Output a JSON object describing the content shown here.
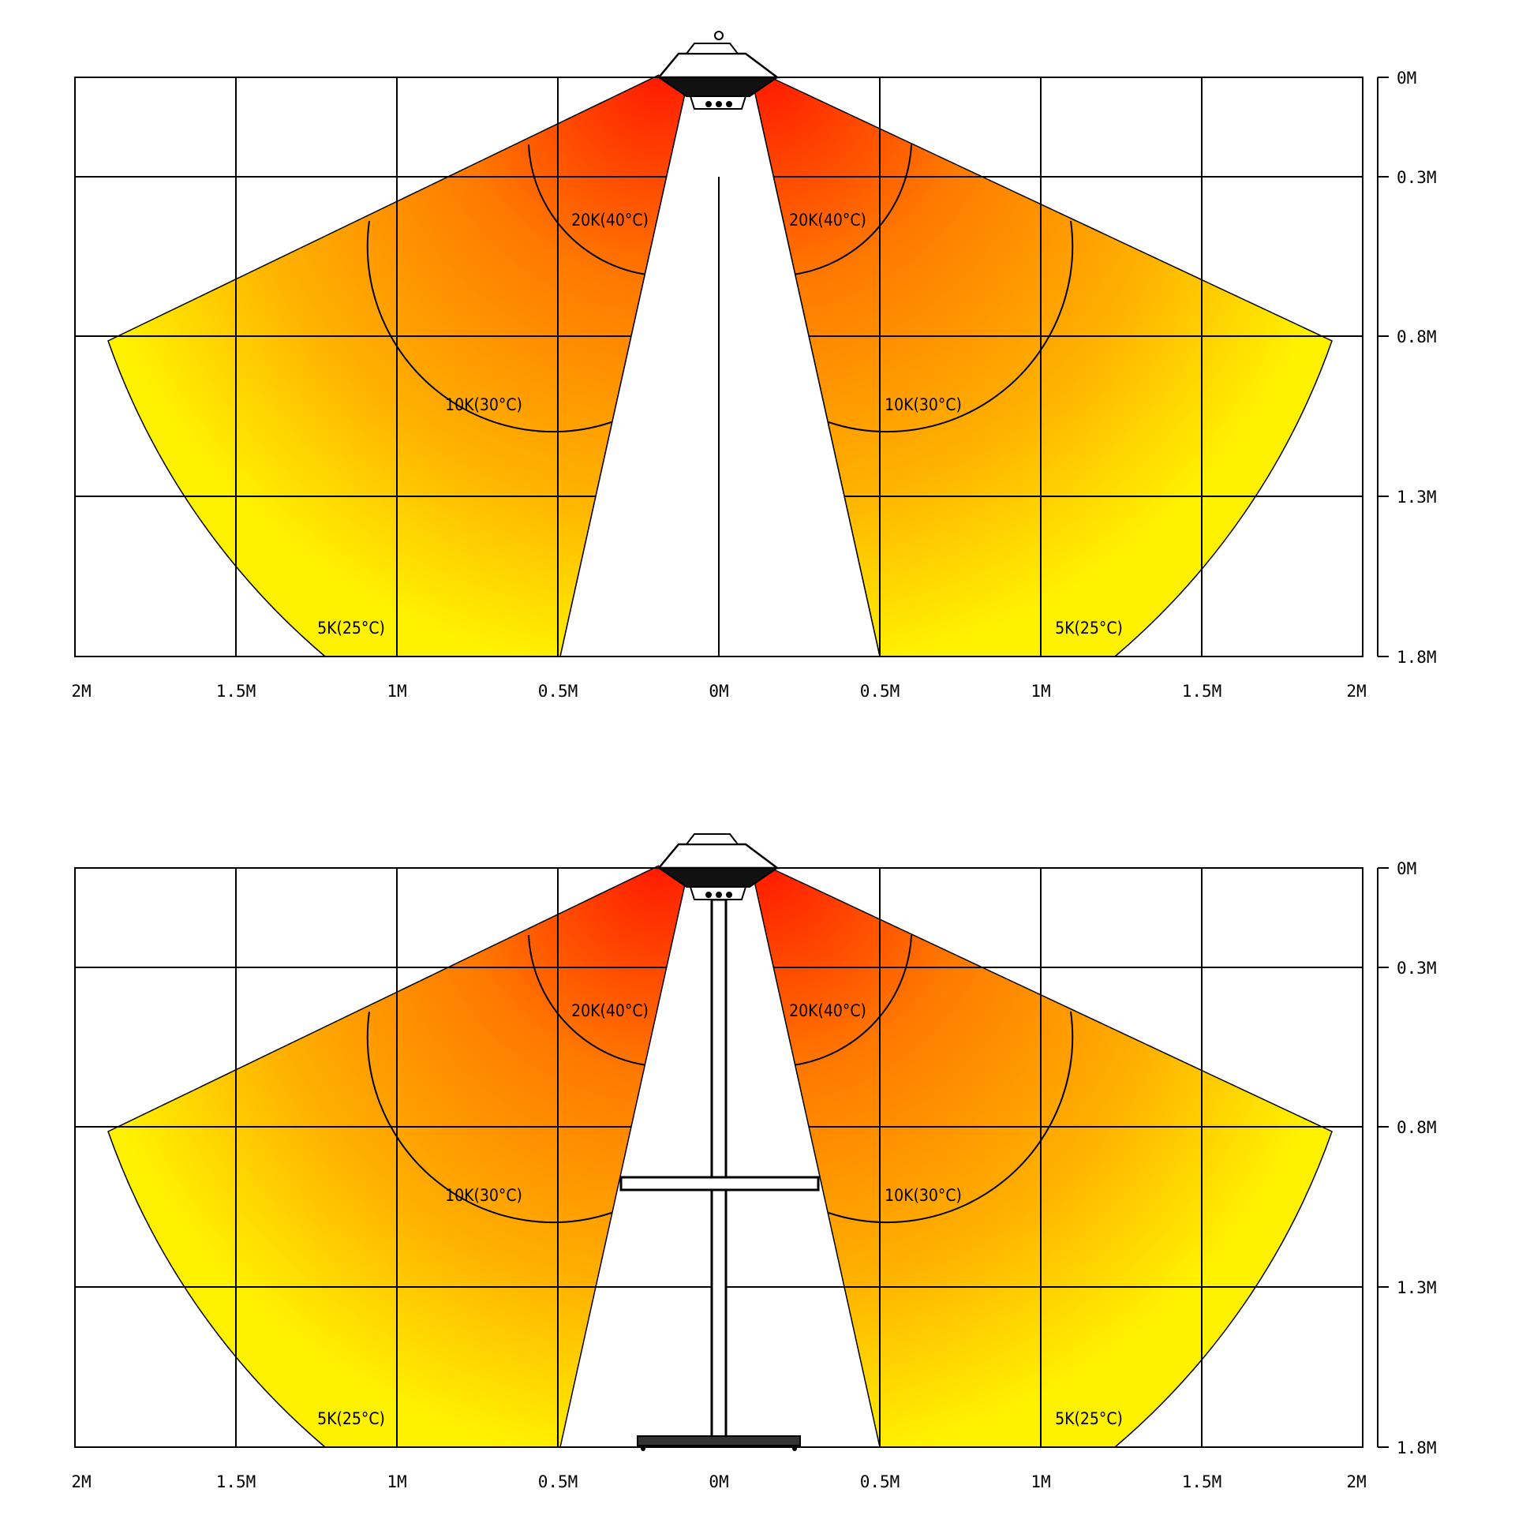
{
  "panels": [
    {
      "id": "heater-only",
      "x_axis_labels": [
        "2M",
        "1.5M",
        "1M",
        "0.5M",
        "0M",
        "0.5M",
        "1M",
        "1.5M",
        "2M"
      ],
      "y_axis_labels": [
        "0M",
        "0.3M",
        "0.8M",
        "1.3M",
        "1.8M"
      ],
      "zones": [
        {
          "label": "20K(40°C)"
        },
        {
          "label": "10K(30°C)"
        },
        {
          "label": "5K(25°C)"
        }
      ],
      "has_pole": false
    },
    {
      "id": "heater-with-stand",
      "x_axis_labels": [
        "2M",
        "1.5M",
        "1M",
        "0.5M",
        "0M",
        "0.5M",
        "1M",
        "1.5M",
        "2M"
      ],
      "y_axis_labels": [
        "0M",
        "0.3M",
        "0.8M",
        "1.3M",
        "1.8M"
      ],
      "zones": [
        {
          "label": "20K(40°C)"
        },
        {
          "label": "10K(30°C)"
        },
        {
          "label": "5K(25°C)"
        }
      ],
      "has_pole": true
    }
  ],
  "colors": {
    "hot": "#ff1a00",
    "warm": "#ff8c00",
    "mild": "#ffee00"
  }
}
